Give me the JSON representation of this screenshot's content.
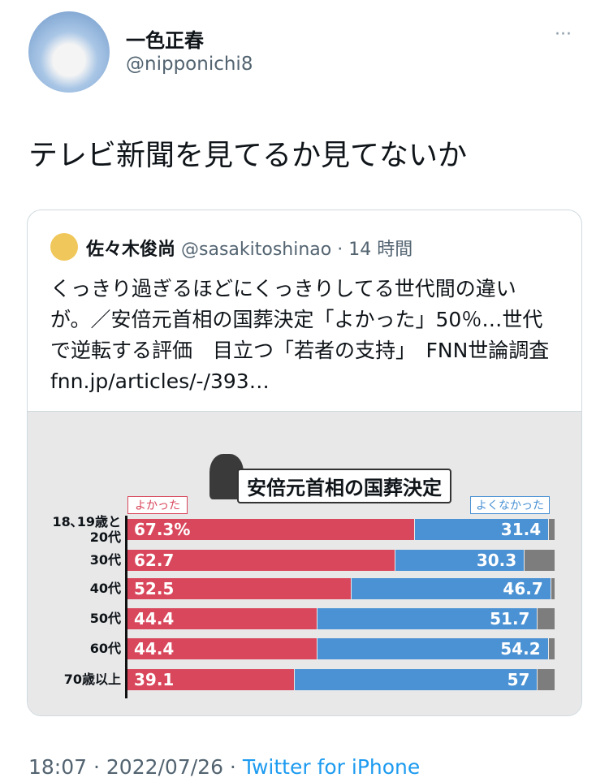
{
  "tweet": {
    "author": {
      "name": "一色正春",
      "handle": "@nipponichi8"
    },
    "text": "テレビ新聞を見てるか見てないか",
    "quoted": {
      "name": "佐々木俊尚",
      "handle": "@sasakitoshinao",
      "time": "· 14 時間",
      "text": "くっきり過ぎるほどにくっきりしてる世代間の違いが。／安倍元首相の国葬決定「よかった」50％…世代で逆転する評価　目立つ「若者の支持」　FNN世論調査 fnn.jp/articles/-/393…"
    },
    "footer": {
      "time": "18:07 · 2022/07/26 ·",
      "source": "Twitter for iPhone"
    }
  },
  "chart_data": {
    "type": "bar",
    "orientation": "horizontal",
    "stacked": true,
    "title": "安倍元首相の国葬決定",
    "categories": [
      "18､19歳と\n20代",
      "30代",
      "40代",
      "50代",
      "60代",
      "70歳以上"
    ],
    "series": [
      {
        "name": "よかった",
        "color": "#d9475c",
        "values": [
          67.3,
          62.7,
          52.5,
          44.4,
          44.4,
          39.1
        ],
        "value_labels": [
          "67.3%",
          "62.7",
          "52.5",
          "44.4",
          "44.4",
          "39.1"
        ]
      },
      {
        "name": "よくなかった",
        "color": "#4a92d4",
        "values": [
          31.4,
          30.3,
          46.7,
          51.7,
          54.2,
          57
        ]
      },
      {
        "color": "#7d7d7d",
        "values": [
          1.3,
          7.0,
          0.8,
          3.9,
          1.4,
          3.9
        ]
      }
    ],
    "xlim": [
      0,
      100
    ]
  }
}
